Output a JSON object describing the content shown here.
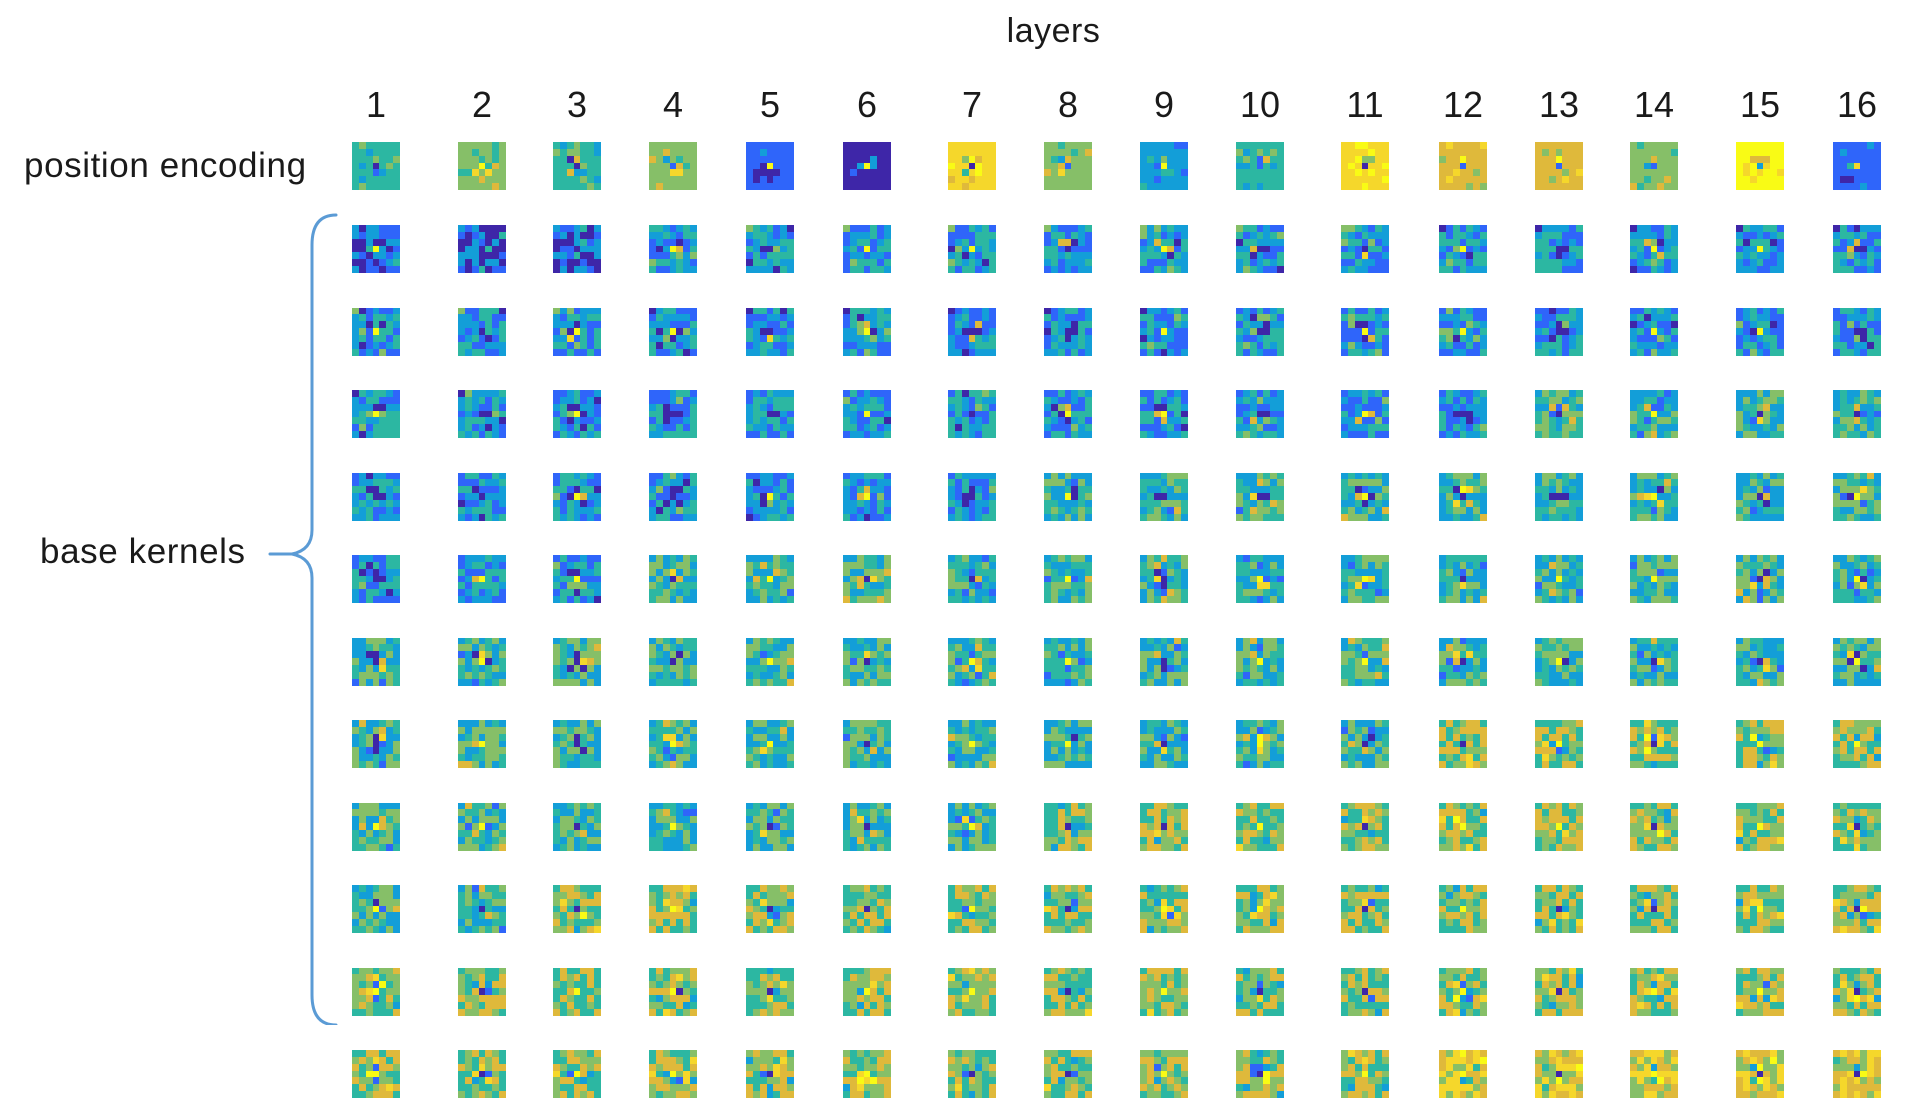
{
  "title": "layers",
  "row_labels": {
    "position": "position encoding",
    "base": "base kernels"
  },
  "columns": [
    "1",
    "2",
    "3",
    "4",
    "5",
    "6",
    "7",
    "8",
    "9",
    "10",
    "11",
    "12",
    "13",
    "14",
    "15",
    "16"
  ],
  "kernel_rows": 11,
  "colormap": [
    "#3e26a8",
    "#2f65fa",
    "#139ed8",
    "#2cb7a2",
    "#86bf68",
    "#dfb93b",
    "#f5d72b",
    "#f9fb15"
  ],
  "brace_color": "#5b9bd5",
  "position_tone": [
    3,
    4,
    3,
    4,
    1,
    0,
    6,
    4,
    2,
    3,
    6,
    5,
    5,
    4,
    7,
    1
  ],
  "position_center": [
    0,
    7,
    0,
    1,
    7,
    7,
    0,
    1,
    7,
    1,
    0,
    1,
    1,
    1,
    2,
    6
  ]
}
